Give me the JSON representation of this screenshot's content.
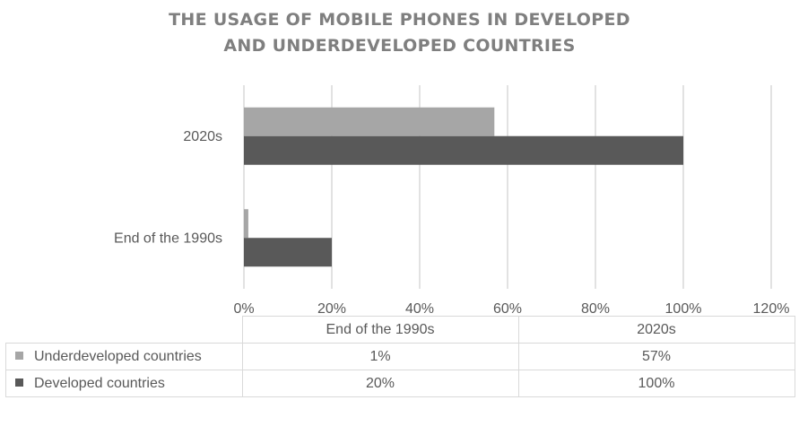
{
  "chart_data": {
    "type": "bar",
    "orientation": "horizontal",
    "title": "THE USAGE OF MOBILE PHONES IN DEVELOPED AND UNDERDEVELOPED COUNTRIES",
    "title_lines": [
      "THE USAGE OF MOBILE PHONES IN DEVELOPED",
      "AND UNDERDEVELOPED COUNTRIES"
    ],
    "categories": [
      "End of the 1990s",
      "2020s"
    ],
    "series": [
      {
        "name": "Underdeveloped countries",
        "values": [
          1,
          57
        ],
        "labels": [
          "1%",
          "57%"
        ],
        "color": "#a6a6a6"
      },
      {
        "name": "Developed countries",
        "values": [
          20,
          100
        ],
        "labels": [
          "20%",
          "100%"
        ],
        "color": "#595959"
      }
    ],
    "x_ticks": [
      "0%",
      "20%",
      "40%",
      "60%",
      "80%",
      "100%",
      "120%"
    ],
    "xlim": [
      0,
      120
    ],
    "grid": "vertical",
    "legend": "data-table-below",
    "xlabel": "",
    "ylabel": ""
  }
}
